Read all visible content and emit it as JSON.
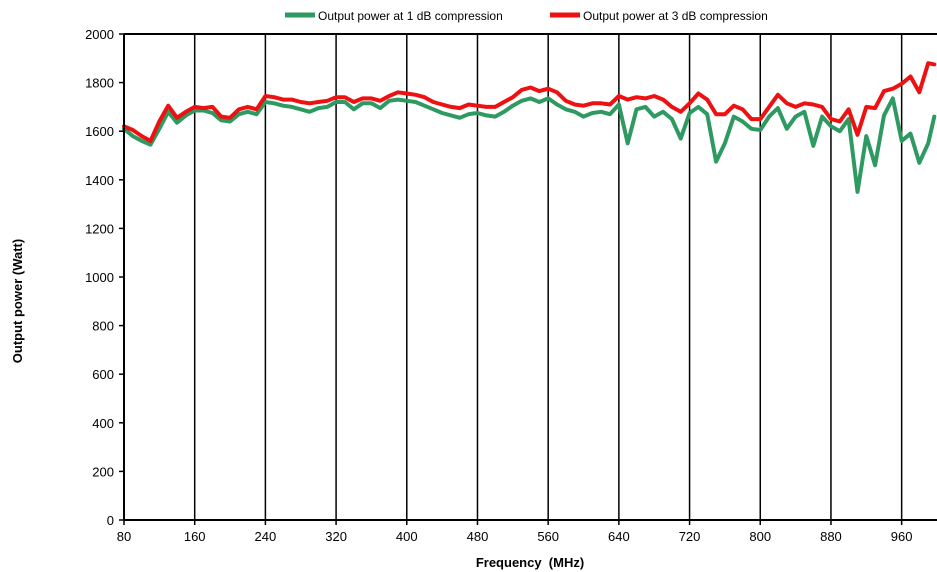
{
  "chart_data": {
    "type": "line",
    "xlabel": "Frequency  (MHz)",
    "ylabel": "Output power (Watt)",
    "xlim": [
      80,
      1000
    ],
    "ylim": [
      0,
      2000
    ],
    "x_ticks": [
      80,
      160,
      240,
      320,
      400,
      480,
      560,
      640,
      720,
      800,
      880,
      960
    ],
    "y_ticks": [
      0,
      200,
      400,
      600,
      800,
      1000,
      1200,
      1400,
      1600,
      1800,
      2000
    ],
    "grid": "vertical",
    "legend_position": "top",
    "x": [
      80,
      90,
      100,
      110,
      120,
      130,
      140,
      150,
      160,
      170,
      180,
      190,
      200,
      210,
      220,
      230,
      240,
      250,
      260,
      270,
      280,
      290,
      300,
      310,
      320,
      330,
      340,
      350,
      360,
      370,
      380,
      390,
      400,
      410,
      420,
      430,
      440,
      450,
      460,
      470,
      480,
      490,
      500,
      510,
      520,
      530,
      540,
      550,
      560,
      570,
      580,
      590,
      600,
      610,
      620,
      630,
      640,
      650,
      660,
      670,
      680,
      690,
      700,
      710,
      720,
      730,
      740,
      750,
      760,
      770,
      780,
      790,
      800,
      810,
      820,
      830,
      840,
      850,
      860,
      870,
      880,
      890,
      900,
      910,
      920,
      930,
      940,
      950,
      960,
      970,
      980,
      990,
      997
    ],
    "series": [
      {
        "name": "Output power at 1 dB compression",
        "color": "#2e9a62",
        "values": [
          1610,
          1580,
          1560,
          1545,
          1610,
          1680,
          1635,
          1665,
          1685,
          1685,
          1675,
          1645,
          1640,
          1670,
          1680,
          1670,
          1720,
          1715,
          1705,
          1700,
          1690,
          1680,
          1695,
          1700,
          1720,
          1720,
          1690,
          1715,
          1715,
          1695,
          1725,
          1730,
          1725,
          1720,
          1705,
          1690,
          1675,
          1665,
          1655,
          1670,
          1675,
          1665,
          1660,
          1680,
          1705,
          1725,
          1735,
          1720,
          1735,
          1710,
          1690,
          1680,
          1660,
          1675,
          1680,
          1670,
          1710,
          1550,
          1690,
          1700,
          1660,
          1680,
          1650,
          1570,
          1675,
          1700,
          1670,
          1475,
          1550,
          1660,
          1640,
          1610,
          1605,
          1660,
          1695,
          1610,
          1660,
          1680,
          1540,
          1660,
          1620,
          1600,
          1650,
          1350,
          1580,
          1460,
          1665,
          1735,
          1560,
          1590,
          1470,
          1550,
          1660
        ]
      },
      {
        "name": "Output power at 3 dB compression",
        "color": "#ee1111",
        "values": [
          1620,
          1605,
          1580,
          1560,
          1640,
          1705,
          1655,
          1680,
          1700,
          1695,
          1700,
          1660,
          1655,
          1690,
          1700,
          1690,
          1745,
          1740,
          1730,
          1730,
          1720,
          1715,
          1720,
          1725,
          1740,
          1740,
          1720,
          1735,
          1735,
          1725,
          1745,
          1760,
          1755,
          1750,
          1740,
          1720,
          1710,
          1700,
          1695,
          1710,
          1705,
          1700,
          1700,
          1720,
          1740,
          1770,
          1780,
          1765,
          1775,
          1760,
          1725,
          1710,
          1705,
          1715,
          1715,
          1710,
          1745,
          1730,
          1740,
          1735,
          1745,
          1730,
          1700,
          1680,
          1715,
          1755,
          1730,
          1670,
          1670,
          1705,
          1690,
          1650,
          1650,
          1700,
          1750,
          1715,
          1700,
          1715,
          1710,
          1700,
          1650,
          1640,
          1690,
          1585,
          1700,
          1695,
          1765,
          1775,
          1795,
          1825,
          1760,
          1880,
          1875
        ]
      }
    ]
  }
}
